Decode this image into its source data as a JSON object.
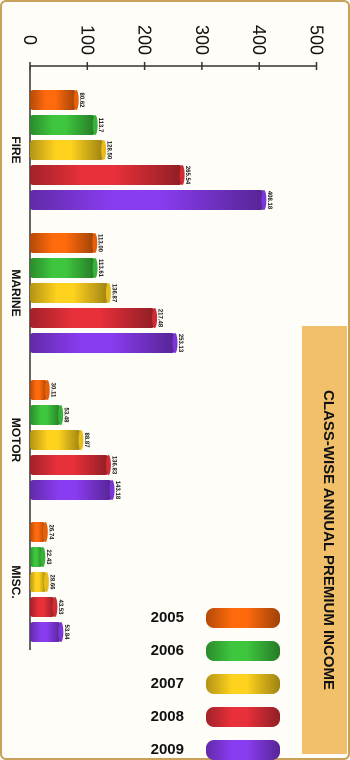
{
  "chart_data": {
    "type": "bar",
    "orientation": "horizontal",
    "title": "CLASS-WISE ANNUAL PREMIUM INCOME",
    "categories": [
      "FIRE",
      "MARINE",
      "MOTOR",
      "MISC."
    ],
    "xlim": [
      0,
      500
    ],
    "ticks": [
      "0",
      "100",
      "200",
      "300",
      "400",
      "500"
    ],
    "tick_values": [
      0,
      100,
      200,
      300,
      400,
      500
    ],
    "series": [
      {
        "name": "2005",
        "color": "#ff6a0c",
        "values": [
          80.62,
          113.0,
          30.11,
          26.74
        ],
        "labels": [
          "80.62",
          "113.00",
          "30.11",
          "26.74"
        ]
      },
      {
        "name": "2006",
        "color": "#3ec63e",
        "values": [
          113.7,
          113.61,
          53.48,
          22.43
        ],
        "labels": [
          "113.7",
          "113.61",
          "53.48",
          "22.43"
        ]
      },
      {
        "name": "2007",
        "color": "#ffd21e",
        "values": [
          128.5,
          136.87,
          88.87,
          28.66
        ],
        "labels": [
          "128.50",
          "136.87",
          "88.87",
          "28.66"
        ]
      },
      {
        "name": "2008",
        "color": "#e8303a",
        "values": [
          265.54,
          217.48,
          136.83,
          43.53
        ],
        "labels": [
          "265.54",
          "217.48",
          "136.83",
          "43.53"
        ]
      },
      {
        "name": "2009",
        "color": "#8a3cf0",
        "values": [
          408.18,
          253.13,
          143.18,
          53.84
        ],
        "labels": [
          "408.18",
          "253.13",
          "143.18",
          "53.84"
        ]
      }
    ],
    "legend_position": "bottom-right",
    "grid": false
  },
  "colors": {
    "title_box": "#f2c06b",
    "frame": "#c9a25a"
  }
}
